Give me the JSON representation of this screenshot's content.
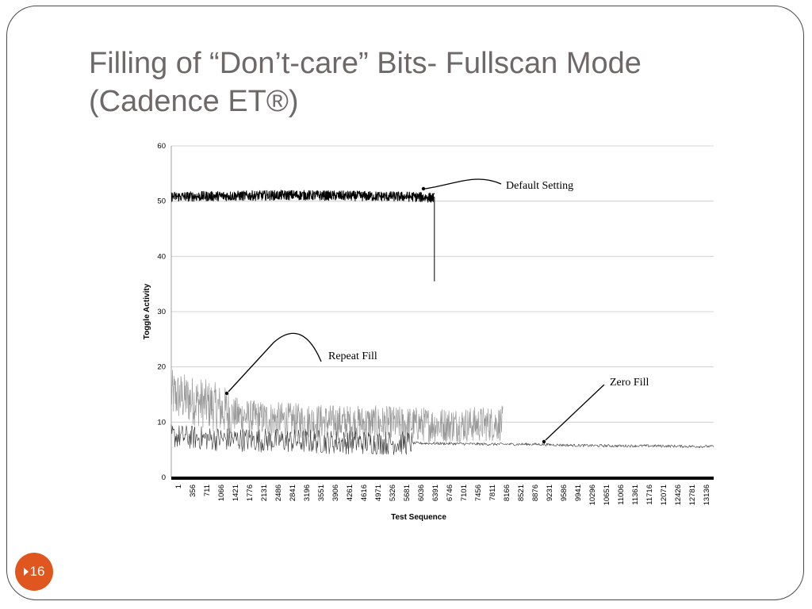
{
  "slide": {
    "title_line1": "Filling of “Don’t-care” Bits- Fullscan Mode",
    "title_line2": "(Cadence ET®)",
    "page_number": "16",
    "accent_color": "#e0561f",
    "title_color": "#6e6868"
  },
  "chart_data": {
    "type": "line",
    "title": "",
    "xlabel": "Test Sequence",
    "ylabel": "Toggle Activity",
    "ylim": [
      0,
      60
    ],
    "yticks": [
      0,
      10,
      20,
      30,
      40,
      50,
      60
    ],
    "xlim": [
      1,
      13500
    ],
    "xticks": [
      "1",
      "356",
      "711",
      "1066",
      "1421",
      "1776",
      "2131",
      "2486",
      "2841",
      "3196",
      "3551",
      "3906",
      "4261",
      "4616",
      "4971",
      "5326",
      "5681",
      "6036",
      "6391",
      "6746",
      "7101",
      "7456",
      "7811",
      "8166",
      "8521",
      "8876",
      "9231",
      "9586",
      "9941",
      "10296",
      "10651",
      "11006",
      "11361",
      "11716",
      "12071",
      "12426",
      "12781",
      "13136"
    ],
    "grid": "horizontal",
    "series": [
      {
        "name": "Default Setting",
        "color": "#000000",
        "x": [
          1,
          1000,
          2000,
          3000,
          4000,
          5000,
          6000,
          6550,
          6600,
          6610
        ],
        "y": [
          50.8,
          50.9,
          51.0,
          51.1,
          51.0,
          50.9,
          50.8,
          50.6,
          35.5,
          35.5
        ]
      },
      {
        "name": "Repeat Fill",
        "color": "#999999",
        "x": [
          1,
          500,
          1000,
          1500,
          2000,
          3000,
          4000,
          5000,
          6000,
          7000,
          8000,
          8250
        ],
        "y": [
          15.0,
          14.0,
          13.0,
          11.5,
          10.8,
          10.3,
          10.0,
          9.8,
          9.6,
          9.5,
          9.7,
          9.8
        ]
      },
      {
        "name": "Zero Fill",
        "color": "#333333",
        "x": [
          1,
          1000,
          2000,
          3000,
          4000,
          5000,
          6000,
          7000,
          8000,
          9000,
          10000,
          11000,
          12000,
          13000,
          13500
        ],
        "y": [
          7.5,
          7.0,
          6.8,
          6.6,
          6.4,
          6.3,
          6.2,
          6.1,
          6.0,
          6.0,
          5.8,
          5.7,
          5.7,
          5.6,
          5.6
        ]
      }
    ],
    "annotations": [
      {
        "label": "Default Setting",
        "series": "Default Setting"
      },
      {
        "label": "Repeat Fill",
        "series": "Repeat Fill"
      },
      {
        "label": "Zero Fill",
        "series": "Zero Fill"
      }
    ]
  }
}
